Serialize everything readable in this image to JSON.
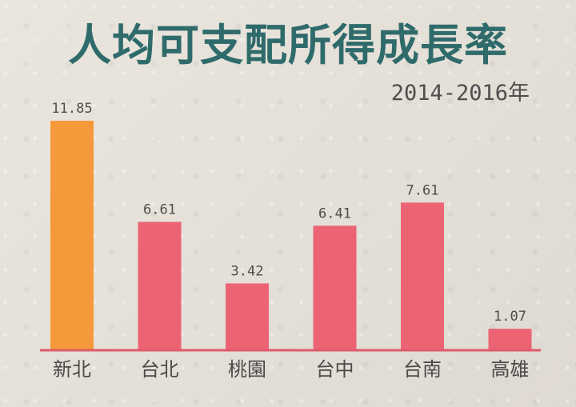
{
  "title": "人均可支配所得成長率",
  "subtitle": "2014-2016年",
  "colors": {
    "highlight": "#f5993a",
    "bar": "#ec6474",
    "baseline": "#e05a6c",
    "title": "#2f6b6b"
  },
  "chart_data": {
    "type": "bar",
    "title": "人均可支配所得成長率",
    "subtitle": "2014-2016年",
    "categories": [
      "新北",
      "台北",
      "桃園",
      "台中",
      "台南",
      "高雄"
    ],
    "values": [
      11.85,
      6.61,
      3.42,
      6.41,
      7.61,
      1.07
    ],
    "value_labels": [
      "11.85",
      "6.61",
      "3.42",
      "6.41",
      "7.61",
      "1.07"
    ],
    "highlight_index": 0,
    "xlabel": "",
    "ylabel": "",
    "ylim": [
      0,
      11.85
    ],
    "grid": false,
    "legend": "none"
  }
}
